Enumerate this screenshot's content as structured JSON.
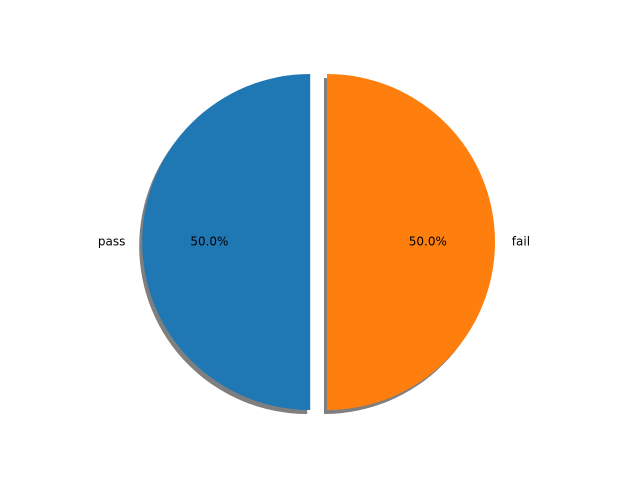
{
  "chart_data": {
    "type": "pie",
    "title": "",
    "labels": [
      "pass",
      "fail"
    ],
    "values": [
      50,
      50
    ],
    "percent_labels": [
      "50.0%",
      "50.0%"
    ],
    "colors": [
      "#1f77b4",
      "#ff7f0e"
    ],
    "explode": [
      0.1,
      0
    ],
    "shadow": true,
    "start_angle_deg": 90,
    "direction": "counterclockwise"
  }
}
